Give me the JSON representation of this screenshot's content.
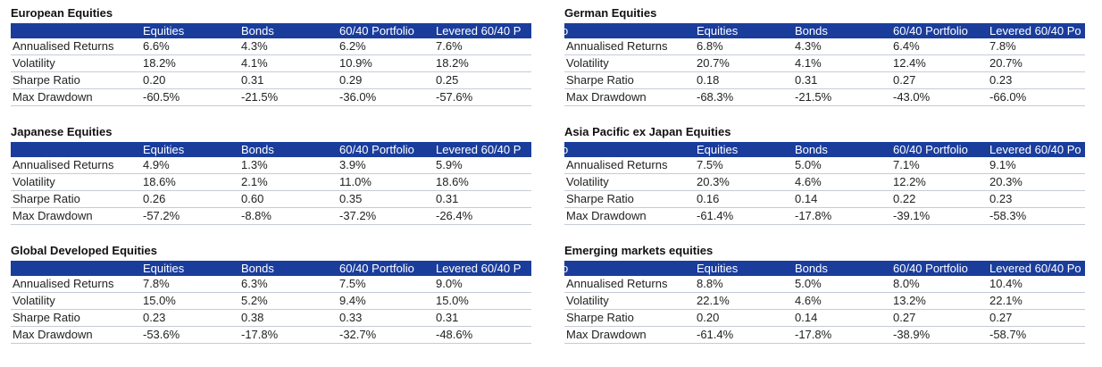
{
  "tables": [
    {
      "title": "European Equities",
      "header": [
        "Equities",
        "Bonds",
        "60/40 Portfolio",
        "Levered 60/40 P"
      ],
      "rows": [
        {
          "label": "Annualised Returns",
          "values": [
            "6.6%",
            "4.3%",
            "6.2%",
            "7.6%"
          ]
        },
        {
          "label": "Volatility",
          "values": [
            "18.2%",
            "4.1%",
            "10.9%",
            "18.2%"
          ]
        },
        {
          "label": "Sharpe Ratio",
          "values": [
            "0.20",
            "0.31",
            "0.29",
            "0.25"
          ]
        },
        {
          "label": "Max Drawdown",
          "values": [
            "-60.5%",
            "-21.5%",
            "-36.0%",
            "-57.6%"
          ]
        }
      ]
    },
    {
      "title": "German Equities",
      "header_lead": "o",
      "header": [
        "Equities",
        "Bonds",
        "60/40 Portfolio",
        "Levered 60/40 Po"
      ],
      "rows": [
        {
          "label": "Annualised Returns",
          "values": [
            "6.8%",
            "4.3%",
            "6.4%",
            "7.8%"
          ]
        },
        {
          "label": "Volatility",
          "values": [
            "20.7%",
            "4.1%",
            "12.4%",
            "20.7%"
          ]
        },
        {
          "label": "Sharpe Ratio",
          "values": [
            "0.18",
            "0.31",
            "0.27",
            "0.23"
          ]
        },
        {
          "label": "Max Drawdown",
          "values": [
            "-68.3%",
            "-21.5%",
            "-43.0%",
            "-66.0%"
          ]
        }
      ]
    },
    {
      "title": "Japanese Equities",
      "header": [
        "Equities",
        "Bonds",
        "60/40 Portfolio",
        "Levered 60/40 P"
      ],
      "rows": [
        {
          "label": "Annualised Returns",
          "values": [
            "4.9%",
            "1.3%",
            "3.9%",
            "5.9%"
          ]
        },
        {
          "label": "Volatility",
          "values": [
            "18.6%",
            "2.1%",
            "11.0%",
            "18.6%"
          ]
        },
        {
          "label": "Sharpe Ratio",
          "values": [
            "0.26",
            "0.60",
            "0.35",
            "0.31"
          ]
        },
        {
          "label": "Max Drawdown",
          "values": [
            "-57.2%",
            "-8.8%",
            "-37.2%",
            "-26.4%"
          ]
        }
      ]
    },
    {
      "title": "Asia Pacific ex Japan Equities",
      "header_lead": "o",
      "header": [
        "Equities",
        "Bonds",
        "60/40 Portfolio",
        "Levered 60/40 Po"
      ],
      "rows": [
        {
          "label": "Annualised Returns",
          "values": [
            "7.5%",
            "5.0%",
            "7.1%",
            "9.1%"
          ]
        },
        {
          "label": "Volatility",
          "values": [
            "20.3%",
            "4.6%",
            "12.2%",
            "20.3%"
          ]
        },
        {
          "label": "Sharpe Ratio",
          "values": [
            "0.16",
            "0.14",
            "0.22",
            "0.23"
          ]
        },
        {
          "label": "Max Drawdown",
          "values": [
            "-61.4%",
            "-17.8%",
            "-39.1%",
            "-58.3%"
          ]
        }
      ]
    },
    {
      "title": "Global Developed Equities",
      "header": [
        "Equities",
        "Bonds",
        "60/40 Portfolio",
        "Levered 60/40 P"
      ],
      "rows": [
        {
          "label": "Annualised Returns",
          "values": [
            "7.8%",
            "6.3%",
            "7.5%",
            "9.0%"
          ]
        },
        {
          "label": "Volatility",
          "values": [
            "15.0%",
            "5.2%",
            "9.4%",
            "15.0%"
          ]
        },
        {
          "label": "Sharpe Ratio",
          "values": [
            "0.23",
            "0.38",
            "0.33",
            "0.31"
          ]
        },
        {
          "label": "Max Drawdown",
          "values": [
            "-53.6%",
            "-17.8%",
            "-32.7%",
            "-48.6%"
          ]
        }
      ]
    },
    {
      "title": "Emerging markets equities",
      "header_lead": "o",
      "header": [
        "Equities",
        "Bonds",
        "60/40 Portfolio",
        "Levered 60/40 Po"
      ],
      "rows": [
        {
          "label": "Annualised Returns",
          "values": [
            "8.8%",
            "5.0%",
            "8.0%",
            "10.4%"
          ]
        },
        {
          "label": "Volatility",
          "values": [
            "22.1%",
            "4.6%",
            "13.2%",
            "22.1%"
          ]
        },
        {
          "label": "Sharpe Ratio",
          "values": [
            "0.20",
            "0.14",
            "0.27",
            "0.27"
          ]
        },
        {
          "label": "Max Drawdown",
          "values": [
            "-61.4%",
            "-17.8%",
            "-38.9%",
            "-58.7%"
          ]
        }
      ]
    }
  ]
}
